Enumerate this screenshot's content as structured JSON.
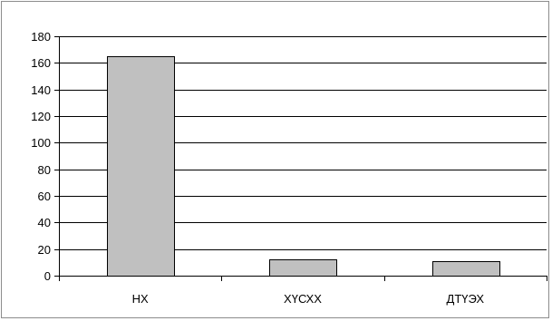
{
  "chart_data": {
    "type": "bar",
    "title": "",
    "xlabel": "",
    "ylabel": "",
    "categories": [
      "НХ",
      "ХҮСХХ",
      "ДТҮЭХ"
    ],
    "values": [
      165,
      12,
      11
    ],
    "ylim": [
      0,
      180
    ],
    "yticks": [
      "0",
      "20",
      "40",
      "60",
      "80",
      "100",
      "120",
      "140",
      "160",
      "180"
    ],
    "grid": true,
    "legend": "none",
    "bar_color": "#c0c0c0",
    "bar_edge_color": "#000000",
    "grid_color": "#000000"
  }
}
